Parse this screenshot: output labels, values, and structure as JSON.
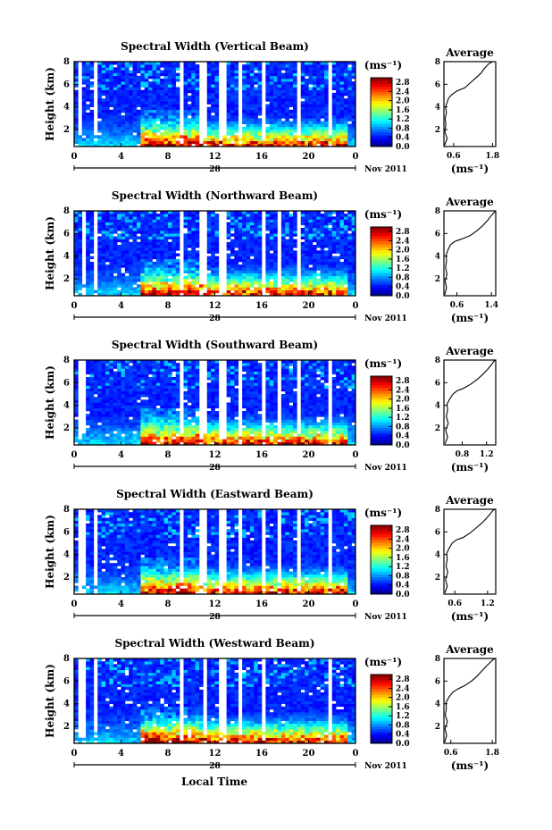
{
  "figure": {
    "xlabel": "Local Time",
    "date_label": "Nov 2011",
    "day_label": "28",
    "unit": "(ms⁻¹)",
    "avg_title": "Average",
    "avg_xlabel": "(ms⁻¹)",
    "ylabel": "Height (km)"
  },
  "chart_data": [
    {
      "type": "heatmap",
      "title": "Spectral Width (Vertical Beam)",
      "ylabel": "Height (km)",
      "xlim": [
        0,
        24
      ],
      "ylim": [
        0.5,
        8
      ],
      "xticks": [
        "0",
        "4",
        "8",
        "12",
        "16",
        "20",
        "0"
      ],
      "yticks": [
        "2",
        "4",
        "6",
        "8"
      ],
      "colorbar": {
        "ticks": [
          "0.0",
          "0.4",
          "0.8",
          "1.2",
          "1.6",
          "2.0",
          "2.4",
          "2.8"
        ],
        "range": [
          0,
          3.0
        ]
      },
      "average": {
        "xticks": [
          "0.6",
          "1.8"
        ],
        "xlim": [
          0.3,
          1.9
        ],
        "yticks": [
          "2",
          "4",
          "6",
          "8"
        ],
        "profile": [
          [
            0.32,
            0.6
          ],
          [
            0.4,
            1.2
          ],
          [
            0.33,
            1.8
          ],
          [
            0.36,
            2.4
          ],
          [
            0.34,
            3.0
          ],
          [
            0.38,
            3.5
          ],
          [
            0.35,
            4.0
          ],
          [
            0.4,
            4.4
          ],
          [
            0.45,
            4.8
          ],
          [
            0.55,
            5.1
          ],
          [
            0.7,
            5.4
          ],
          [
            0.95,
            5.7
          ],
          [
            1.1,
            6.1
          ],
          [
            1.3,
            6.6
          ],
          [
            1.45,
            7.0
          ],
          [
            1.55,
            7.4
          ],
          [
            1.68,
            7.8
          ],
          [
            1.8,
            8.0
          ]
        ]
      }
    },
    {
      "type": "heatmap",
      "title": "Spectral Width (Northward Beam)",
      "ylabel": "Height (km)",
      "xlim": [
        0,
        24
      ],
      "ylim": [
        0.5,
        8
      ],
      "xticks": [
        "0",
        "4",
        "8",
        "12",
        "16",
        "20",
        "0"
      ],
      "yticks": [
        "2",
        "4",
        "6",
        "8"
      ],
      "colorbar": {
        "ticks": [
          "0.0",
          "0.4",
          "0.8",
          "1.2",
          "1.6",
          "2.0",
          "2.4",
          "2.8"
        ],
        "range": [
          0,
          3.0
        ]
      },
      "average": {
        "xticks": [
          "0.6",
          "1.4"
        ],
        "xlim": [
          0.3,
          1.5
        ],
        "yticks": [
          "2",
          "4",
          "6",
          "8"
        ],
        "profile": [
          [
            0.32,
            0.6
          ],
          [
            0.36,
            1.2
          ],
          [
            0.33,
            1.8
          ],
          [
            0.37,
            2.4
          ],
          [
            0.34,
            3.0
          ],
          [
            0.36,
            3.6
          ],
          [
            0.35,
            4.1
          ],
          [
            0.4,
            4.6
          ],
          [
            0.45,
            5.0
          ],
          [
            0.55,
            5.3
          ],
          [
            0.7,
            5.5
          ],
          [
            0.9,
            5.8
          ],
          [
            1.05,
            6.2
          ],
          [
            1.2,
            6.7
          ],
          [
            1.3,
            7.1
          ],
          [
            1.38,
            7.5
          ],
          [
            1.45,
            7.8
          ],
          [
            1.5,
            8.0
          ]
        ]
      }
    },
    {
      "type": "heatmap",
      "title": "Spectral Width (Southward Beam)",
      "ylabel": "Height (km)",
      "xlim": [
        0,
        24
      ],
      "ylim": [
        0.5,
        8
      ],
      "xticks": [
        "0",
        "4",
        "8",
        "12",
        "16",
        "20",
        "0"
      ],
      "yticks": [
        "2",
        "4",
        "6",
        "8"
      ],
      "colorbar": {
        "ticks": [
          "0.0",
          "0.4",
          "0.8",
          "1.2",
          "1.6",
          "2.0",
          "2.4",
          "2.8"
        ],
        "range": [
          0,
          3.0
        ]
      },
      "average": {
        "xticks": [
          "0.8",
          "1.2"
        ],
        "xlim": [
          0.5,
          1.35
        ],
        "yticks": [
          "2",
          "4",
          "6",
          "8"
        ],
        "profile": [
          [
            0.52,
            0.6
          ],
          [
            0.56,
            1.2
          ],
          [
            0.53,
            1.8
          ],
          [
            0.57,
            2.4
          ],
          [
            0.54,
            3.0
          ],
          [
            0.56,
            3.6
          ],
          [
            0.55,
            4.1
          ],
          [
            0.6,
            4.6
          ],
          [
            0.65,
            5.0
          ],
          [
            0.72,
            5.3
          ],
          [
            0.82,
            5.5
          ],
          [
            0.95,
            5.9
          ],
          [
            1.05,
            6.3
          ],
          [
            1.15,
            6.8
          ],
          [
            1.22,
            7.2
          ],
          [
            1.28,
            7.6
          ],
          [
            1.32,
            7.9
          ],
          [
            1.35,
            8.0
          ]
        ]
      }
    },
    {
      "type": "heatmap",
      "title": "Spectral Width (Eastward Beam)",
      "ylabel": "Height (km)",
      "xlim": [
        0,
        24
      ],
      "ylim": [
        0.5,
        8
      ],
      "xticks": [
        "0",
        "4",
        "8",
        "12",
        "16",
        "20",
        "0"
      ],
      "yticks": [
        "2",
        "4",
        "6",
        "8"
      ],
      "colorbar": {
        "ticks": [
          "0.0",
          "0.4",
          "0.8",
          "1.2",
          "1.6",
          "2.0",
          "2.4",
          "2.8"
        ],
        "range": [
          0,
          3.0
        ]
      },
      "average": {
        "xticks": [
          "0.6",
          "1.2"
        ],
        "xlim": [
          0.4,
          1.35
        ],
        "yticks": [
          "2",
          "4",
          "6",
          "8"
        ],
        "profile": [
          [
            0.42,
            0.6
          ],
          [
            0.46,
            1.2
          ],
          [
            0.43,
            1.8
          ],
          [
            0.47,
            2.4
          ],
          [
            0.44,
            3.0
          ],
          [
            0.46,
            3.6
          ],
          [
            0.45,
            4.1
          ],
          [
            0.5,
            4.6
          ],
          [
            0.55,
            5.0
          ],
          [
            0.63,
            5.3
          ],
          [
            0.75,
            5.5
          ],
          [
            0.88,
            5.9
          ],
          [
            0.98,
            6.3
          ],
          [
            1.1,
            6.8
          ],
          [
            1.18,
            7.2
          ],
          [
            1.25,
            7.6
          ],
          [
            1.3,
            7.9
          ],
          [
            1.34,
            8.0
          ]
        ]
      }
    },
    {
      "type": "heatmap",
      "title": "Spectral Width (Westward Beam)",
      "ylabel": "Height (km)",
      "xlim": [
        0,
        24
      ],
      "ylim": [
        0.5,
        8
      ],
      "xticks": [
        "0",
        "4",
        "8",
        "12",
        "16",
        "20",
        "0"
      ],
      "yticks": [
        "2",
        "4",
        "6",
        "8"
      ],
      "colorbar": {
        "ticks": [
          "0.0",
          "0.4",
          "0.8",
          "1.2",
          "1.6",
          "2.0",
          "2.4",
          "2.8"
        ],
        "range": [
          0,
          3.0
        ]
      },
      "average": {
        "xticks": [
          "0.6",
          "1.8"
        ],
        "xlim": [
          0.4,
          1.9
        ],
        "yticks": [
          "2",
          "4",
          "6",
          "8"
        ],
        "profile": [
          [
            0.42,
            0.6
          ],
          [
            0.48,
            1.2
          ],
          [
            0.43,
            1.8
          ],
          [
            0.5,
            2.4
          ],
          [
            0.44,
            3.0
          ],
          [
            0.47,
            3.6
          ],
          [
            0.46,
            4.1
          ],
          [
            0.55,
            4.6
          ],
          [
            0.65,
            5.0
          ],
          [
            0.8,
            5.3
          ],
          [
            1.0,
            5.6
          ],
          [
            1.2,
            6.0
          ],
          [
            1.35,
            6.4
          ],
          [
            1.5,
            6.9
          ],
          [
            1.62,
            7.3
          ],
          [
            1.72,
            7.6
          ],
          [
            1.82,
            7.9
          ],
          [
            1.9,
            8.0
          ]
        ]
      }
    }
  ]
}
